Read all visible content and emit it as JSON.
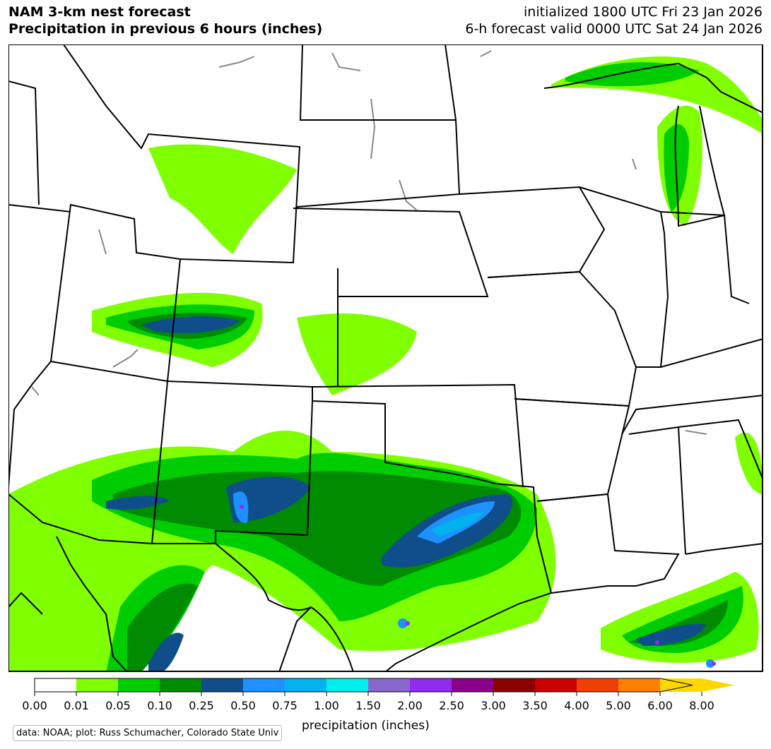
{
  "title_left": [
    "NAM 3-km nest forecast",
    "Precipitation in previous 6 hours (inches)"
  ],
  "title_right": [
    "initialized 1800 UTC Fri 23 Jan 2026",
    "6-h forecast valid 0000 UTC Sat 24 Jan 2026"
  ],
  "colorbar": {
    "label": "precipitation (inches)",
    "ticks": [
      "0.00",
      "0.01",
      "0.05",
      "0.10",
      "0.25",
      "0.50",
      "0.75",
      "1.00",
      "1.50",
      "2.00",
      "2.50",
      "3.00",
      "3.50",
      "4.00",
      "5.00",
      "6.00",
      "8.00"
    ],
    "colors": [
      "#ffffff",
      "#7fff00",
      "#00cd00",
      "#008b00",
      "#104e8b",
      "#1e90ff",
      "#00b2ee",
      "#00eeee",
      "#8968cd",
      "#912cee",
      "#8b008b",
      "#8b0000",
      "#cd0000",
      "#ee4000",
      "#ff7f00",
      "#ffd700"
    ],
    "extend": "max"
  },
  "credit": "data: NOAA; plot: Russ Schumacher, Colorado State Univ"
}
